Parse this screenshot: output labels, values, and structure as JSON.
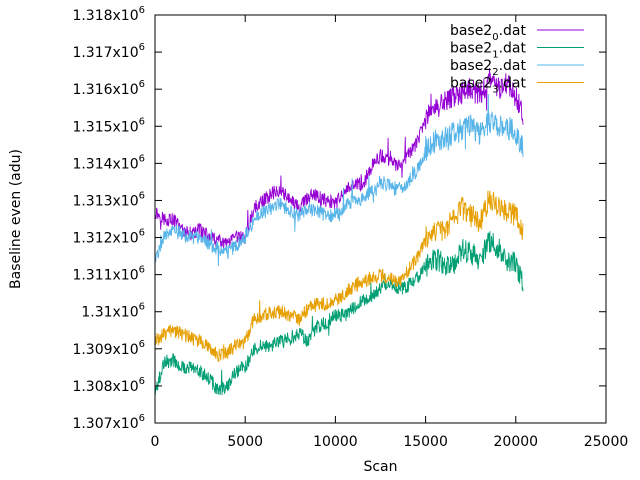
{
  "chart_data": {
    "type": "line",
    "title": "",
    "xlabel": "Scan",
    "ylabel": "Baseline even (adu)",
    "xlim": [
      0,
      25000
    ],
    "ylim": [
      1307000,
      1318000
    ],
    "grid": false,
    "legend_position": "top-right",
    "x_ticks": [
      {
        "value": 0,
        "label": "0"
      },
      {
        "value": 5000,
        "label": "5000"
      },
      {
        "value": 10000,
        "label": "10000"
      },
      {
        "value": 15000,
        "label": "15000"
      },
      {
        "value": 20000,
        "label": "20000"
      },
      {
        "value": 25000,
        "label": "25000"
      }
    ],
    "y_ticks": [
      {
        "value": 1307000,
        "mantissa": "1.307x10",
        "exp": "6"
      },
      {
        "value": 1308000,
        "mantissa": "1.308x10",
        "exp": "6"
      },
      {
        "value": 1309000,
        "mantissa": "1.309x10",
        "exp": "6"
      },
      {
        "value": 1310000,
        "mantissa": "1.31x10",
        "exp": "6"
      },
      {
        "value": 1311000,
        "mantissa": "1.311x10",
        "exp": "6"
      },
      {
        "value": 1312000,
        "mantissa": "1.312x10",
        "exp": "6"
      },
      {
        "value": 1313000,
        "mantissa": "1.313x10",
        "exp": "6"
      },
      {
        "value": 1314000,
        "mantissa": "1.314x10",
        "exp": "6"
      },
      {
        "value": 1315000,
        "mantissa": "1.315x10",
        "exp": "6"
      },
      {
        "value": 1316000,
        "mantissa": "1.316x10",
        "exp": "6"
      },
      {
        "value": 1317000,
        "mantissa": "1.317x10",
        "exp": "6"
      },
      {
        "value": 1318000,
        "mantissa": "1.318x10",
        "exp": "6"
      }
    ],
    "series": [
      {
        "name_base": "base2",
        "name_sub": "0",
        "name_suffix": ".dat",
        "color": "#9400d3",
        "x": [
          0,
          500,
          1000,
          1500,
          2000,
          2500,
          3000,
          3500,
          4000,
          4500,
          5000,
          5500,
          6000,
          6500,
          7000,
          7500,
          8000,
          8500,
          9000,
          9500,
          10000,
          10500,
          11000,
          11500,
          12000,
          12500,
          13000,
          13500,
          14000,
          14500,
          15000,
          15500,
          16000,
          16500,
          17000,
          17500,
          18000,
          18500,
          19000,
          19500,
          20000,
          20400
        ],
        "y": [
          1312700,
          1312500,
          1312500,
          1312200,
          1312100,
          1312200,
          1312000,
          1311900,
          1311800,
          1312000,
          1312000,
          1312800,
          1313000,
          1313200,
          1313300,
          1313000,
          1312800,
          1313100,
          1313100,
          1313000,
          1312900,
          1313200,
          1313500,
          1313400,
          1313900,
          1314200,
          1314100,
          1313900,
          1314200,
          1314500,
          1315200,
          1315500,
          1315600,
          1315800,
          1315900,
          1316000,
          1315800,
          1316300,
          1316000,
          1316200,
          1315800,
          1315300
        ]
      },
      {
        "name_base": "base2",
        "name_sub": "1",
        "name_suffix": ".dat",
        "color": "#009e73",
        "x": [
          0,
          500,
          1000,
          1500,
          2000,
          2500,
          3000,
          3500,
          4000,
          4500,
          5000,
          5500,
          6000,
          6500,
          7000,
          7500,
          8000,
          8500,
          9000,
          9500,
          10000,
          10500,
          11000,
          11500,
          12000,
          12500,
          13000,
          13500,
          14000,
          14500,
          15000,
          15500,
          16000,
          16500,
          17000,
          17500,
          18000,
          18500,
          19000,
          19500,
          20000,
          20400
        ],
        "y": [
          1307800,
          1308600,
          1308700,
          1308500,
          1308500,
          1308400,
          1308200,
          1307900,
          1308000,
          1308400,
          1308500,
          1309000,
          1309100,
          1309100,
          1309200,
          1309300,
          1309400,
          1309200,
          1309600,
          1309700,
          1309900,
          1309900,
          1310100,
          1310300,
          1310400,
          1310600,
          1310800,
          1310600,
          1310700,
          1310900,
          1311200,
          1311400,
          1311300,
          1311200,
          1311700,
          1311600,
          1311400,
          1311900,
          1311700,
          1311400,
          1311300,
          1310800
        ]
      },
      {
        "name_base": "base2",
        "name_sub": "2",
        "name_suffix": ".dat",
        "color": "#56b4e9",
        "x": [
          0,
          500,
          1000,
          1500,
          2000,
          2500,
          3000,
          3500,
          4000,
          4500,
          5000,
          5500,
          6000,
          6500,
          7000,
          7500,
          8000,
          8500,
          9000,
          9500,
          10000,
          10500,
          11000,
          11500,
          12000,
          12500,
          13000,
          13500,
          14000,
          14500,
          15000,
          15500,
          16000,
          16500,
          17000,
          17500,
          18000,
          18500,
          19000,
          19500,
          20000,
          20400
        ],
        "y": [
          1311300,
          1312000,
          1312200,
          1312100,
          1312000,
          1312000,
          1311800,
          1311700,
          1311600,
          1311800,
          1312000,
          1312500,
          1312700,
          1312800,
          1312900,
          1312700,
          1312600,
          1312800,
          1312700,
          1312600,
          1312600,
          1312800,
          1313000,
          1313000,
          1313300,
          1313500,
          1313400,
          1313300,
          1313500,
          1313800,
          1314300,
          1314600,
          1314700,
          1314800,
          1314900,
          1315000,
          1314800,
          1315100,
          1315000,
          1315000,
          1314800,
          1314400
        ]
      },
      {
        "name_base": "base2",
        "name_sub": "3",
        "name_suffix": ".dat",
        "color": "#e69f00",
        "x": [
          0,
          500,
          1000,
          1500,
          2000,
          2500,
          3000,
          3500,
          4000,
          4500,
          5000,
          5500,
          6000,
          6500,
          7000,
          7500,
          8000,
          8500,
          9000,
          9500,
          10000,
          10500,
          11000,
          11500,
          12000,
          12500,
          13000,
          13500,
          14000,
          14500,
          15000,
          15500,
          16000,
          16500,
          17000,
          17500,
          18000,
          18500,
          19000,
          19500,
          20000,
          20400
        ],
        "y": [
          1309200,
          1309400,
          1309500,
          1309400,
          1309300,
          1309200,
          1309100,
          1308800,
          1308900,
          1309100,
          1309200,
          1309800,
          1309900,
          1310000,
          1310000,
          1309900,
          1309800,
          1310100,
          1310200,
          1310200,
          1310300,
          1310500,
          1310700,
          1310800,
          1310900,
          1311000,
          1310900,
          1310800,
          1311100,
          1311400,
          1312000,
          1312100,
          1312200,
          1312500,
          1312800,
          1312600,
          1312400,
          1313000,
          1312900,
          1312700,
          1312600,
          1312200
        ]
      }
    ]
  }
}
